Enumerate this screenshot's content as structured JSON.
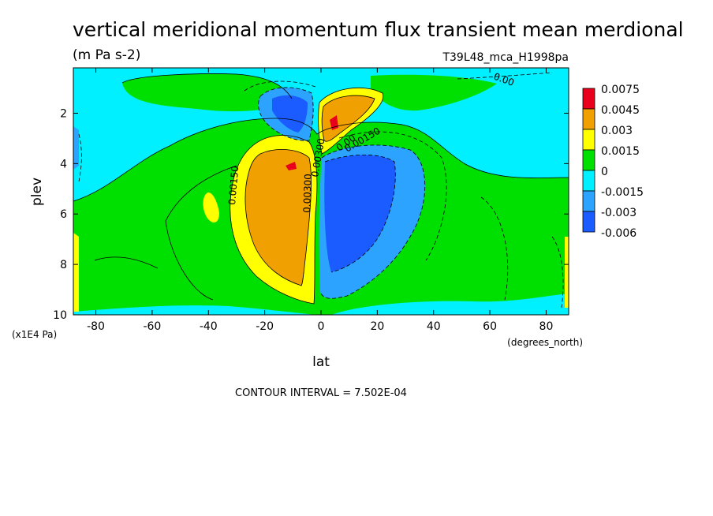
{
  "chart_data": {
    "type": "heatmap",
    "title": "vertical meridional momentum flux transient mean merdional",
    "units": "(m Pa s-2)",
    "dataset": "T39L48_mca_H1998pa",
    "xlabel": "lat",
    "xunits": "(degrees_north)",
    "ylabel": "plev",
    "yunits": "(x1E4 Pa)",
    "xlim": [
      -88,
      88
    ],
    "ylim": [
      0.2,
      10
    ],
    "y_inverted": true,
    "x_ticks": [
      -80,
      -60,
      -40,
      -20,
      0,
      20,
      40,
      60,
      80
    ],
    "y_ticks": [
      2,
      4,
      6,
      8,
      10
    ],
    "x_tick_labels": [
      "-80",
      "-60",
      "-40",
      "-20",
      "0",
      "20",
      "40",
      "60",
      "80"
    ],
    "y_tick_labels": [
      "2",
      "4",
      "6",
      "8",
      "10"
    ],
    "colorbar": {
      "levels": [
        "0.0075",
        "0.0045",
        "0.003",
        "0.0015",
        "0",
        "-0.0015",
        "-0.003",
        "-0.006"
      ],
      "colors": [
        "#e8001c",
        "#f0a000",
        "#ffff00",
        "#00e000",
        "#00f0ff",
        "#2ca4ff",
        "#1a5cff"
      ],
      "placement": "right"
    },
    "contour_labels": [
      "0.00150",
      "0.00300",
      "0.00300",
      "0.00",
      "0.00150",
      "0.00"
    ],
    "contour_interval_text": "CONTOUR INTERVAL = 7.502E-04",
    "fields": {
      "background": 0.0,
      "features": [
        {
          "lat": -17,
          "plev": 5.5,
          "value": 0.0034,
          "note": "southern hemisphere positive lobe"
        },
        {
          "lat": -12,
          "plev": 4.0,
          "value": 0.005,
          "note": "southern max"
        },
        {
          "lat": 5,
          "plev": 2.3,
          "value": 0.0055,
          "note": "northern upper positive lobe"
        },
        {
          "lat": 15,
          "plev": 5.0,
          "value": -0.004,
          "note": "northern negative lobe"
        },
        {
          "lat": -10,
          "plev": 1.8,
          "value": -0.0025,
          "note": "upper southern negative lobe"
        },
        {
          "lat": 60,
          "plev": 1.5,
          "value": -0.0008,
          "note": "upper northern weak negative"
        }
      ]
    }
  }
}
